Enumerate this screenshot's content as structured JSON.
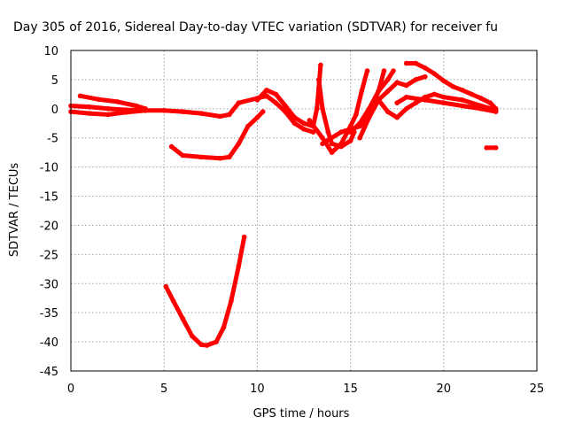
{
  "chart_data": {
    "type": "scatter",
    "title": "Day 305 of 2016, Sidereal Day-to-day VTEC variation (SDTVAR) for receiver fu",
    "xlabel": "GPS time / hours",
    "ylabel": "SDTVAR / TECUs",
    "xlim": [
      0,
      25
    ],
    "ylim": [
      -45,
      10
    ],
    "xticks": [
      0,
      5,
      10,
      15,
      20,
      25
    ],
    "yticks": [
      10,
      5,
      0,
      -5,
      -10,
      -15,
      -20,
      -25,
      -30,
      -35,
      -40,
      -45
    ],
    "grid": true,
    "color": "#ff0000",
    "series": [
      {
        "points": [
          [
            0.0,
            0.5
          ],
          [
            1.0,
            0.3
          ],
          [
            2.0,
            0.0
          ],
          [
            3.0,
            -0.2
          ],
          [
            4.0,
            -0.3
          ],
          [
            5.0,
            -0.3
          ],
          [
            6.0,
            -0.5
          ],
          [
            7.0,
            -0.8
          ],
          [
            8.0,
            -1.3
          ],
          [
            8.5,
            -1.0
          ],
          [
            9.0,
            1.0
          ],
          [
            10.0,
            1.8
          ],
          [
            10.5,
            2.2
          ],
          [
            11.0,
            1.0
          ],
          [
            11.5,
            -0.5
          ],
          [
            12.0,
            -2.5
          ],
          [
            12.5,
            -3.5
          ],
          [
            13.0,
            -4.0
          ]
        ]
      },
      {
        "points": [
          [
            0.5,
            2.2
          ],
          [
            1.5,
            1.6
          ],
          [
            2.5,
            1.2
          ],
          [
            3.5,
            0.5
          ],
          [
            4.0,
            0.0
          ]
        ]
      },
      {
        "points": [
          [
            0.0,
            -0.5
          ],
          [
            1.0,
            -0.8
          ],
          [
            2.0,
            -1.0
          ],
          [
            3.0,
            -0.6
          ],
          [
            4.0,
            -0.3
          ]
        ]
      },
      {
        "points": [
          [
            5.4,
            -6.5
          ],
          [
            6.0,
            -8.0
          ],
          [
            7.0,
            -8.3
          ],
          [
            8.0,
            -8.5
          ],
          [
            8.5,
            -8.3
          ],
          [
            9.0,
            -6.0
          ],
          [
            9.5,
            -3.0
          ],
          [
            10.0,
            -1.5
          ],
          [
            10.3,
            -0.5
          ]
        ]
      },
      {
        "points": [
          [
            5.1,
            -30.5
          ],
          [
            5.5,
            -33.0
          ],
          [
            6.0,
            -36.0
          ],
          [
            6.5,
            -39.0
          ],
          [
            7.0,
            -40.5
          ],
          [
            7.3,
            -40.6
          ],
          [
            7.8,
            -40.0
          ],
          [
            8.2,
            -37.5
          ],
          [
            8.6,
            -33.0
          ],
          [
            9.0,
            -27.0
          ],
          [
            9.3,
            -22.0
          ]
        ]
      },
      {
        "points": [
          [
            10.0,
            1.5
          ],
          [
            10.5,
            3.2
          ],
          [
            11.0,
            2.5
          ],
          [
            11.5,
            0.5
          ],
          [
            12.0,
            -1.5
          ],
          [
            12.5,
            -2.5
          ],
          [
            13.0,
            -3.0
          ]
        ]
      },
      {
        "points": [
          [
            13.0,
            -3.0
          ],
          [
            13.2,
            0.0
          ],
          [
            13.3,
            3.5
          ],
          [
            13.4,
            7.5
          ]
        ]
      },
      {
        "points": [
          [
            13.3,
            5.0
          ],
          [
            13.5,
            0.0
          ],
          [
            13.8,
            -4.0
          ],
          [
            14.0,
            -6.0
          ],
          [
            14.5,
            -6.5
          ],
          [
            15.0,
            -5.5
          ],
          [
            15.2,
            -4.0
          ]
        ]
      },
      {
        "points": [
          [
            12.8,
            -2.0
          ],
          [
            13.5,
            -5.0
          ],
          [
            14.0,
            -7.5
          ],
          [
            14.5,
            -6.0
          ],
          [
            15.0,
            -3.0
          ],
          [
            15.3,
            -1.0
          ],
          [
            15.6,
            3.0
          ],
          [
            15.9,
            6.5
          ]
        ]
      },
      {
        "points": [
          [
            13.5,
            -6.0
          ],
          [
            14.5,
            -4.0
          ],
          [
            15.5,
            -3.0
          ],
          [
            16.0,
            -1.0
          ],
          [
            16.5,
            3.0
          ],
          [
            16.8,
            6.5
          ]
        ]
      },
      {
        "points": [
          [
            15.0,
            -4.0
          ],
          [
            15.5,
            -2.5
          ],
          [
            16.0,
            0.0
          ],
          [
            16.5,
            3.0
          ],
          [
            17.0,
            5.0
          ],
          [
            17.3,
            6.5
          ]
        ]
      },
      {
        "points": [
          [
            15.5,
            -5.0
          ],
          [
            16.0,
            -1.5
          ],
          [
            16.5,
            1.5
          ],
          [
            17.0,
            3.0
          ],
          [
            17.5,
            4.5
          ],
          [
            18.0,
            4.0
          ],
          [
            18.5,
            5.0
          ],
          [
            19.0,
            5.5
          ]
        ]
      },
      {
        "points": [
          [
            16.5,
            1.5
          ],
          [
            17.0,
            -0.5
          ],
          [
            17.5,
            -1.5
          ],
          [
            18.0,
            0.0
          ],
          [
            18.5,
            1.0
          ],
          [
            19.0,
            2.0
          ],
          [
            19.5,
            2.5
          ],
          [
            20.0,
            2.0
          ],
          [
            21.0,
            1.5
          ],
          [
            22.0,
            0.5
          ],
          [
            22.8,
            -0.2
          ]
        ]
      },
      {
        "points": [
          [
            17.5,
            1.0
          ],
          [
            18.0,
            2.0
          ],
          [
            19.0,
            1.5
          ],
          [
            20.0,
            1.0
          ],
          [
            21.0,
            0.5
          ],
          [
            22.0,
            0.0
          ],
          [
            22.8,
            -0.5
          ]
        ]
      },
      {
        "points": [
          [
            18.0,
            7.8
          ],
          [
            18.5,
            7.8
          ],
          [
            19.0,
            7.0
          ],
          [
            19.5,
            6.0
          ],
          [
            20.0,
            4.8
          ],
          [
            20.5,
            3.8
          ],
          [
            21.0,
            3.2
          ],
          [
            21.5,
            2.5
          ],
          [
            22.0,
            1.8
          ],
          [
            22.5,
            1.0
          ],
          [
            22.8,
            0.0
          ]
        ]
      },
      {
        "points": [
          [
            22.3,
            -6.7
          ],
          [
            22.8,
            -6.7
          ]
        ]
      }
    ]
  }
}
